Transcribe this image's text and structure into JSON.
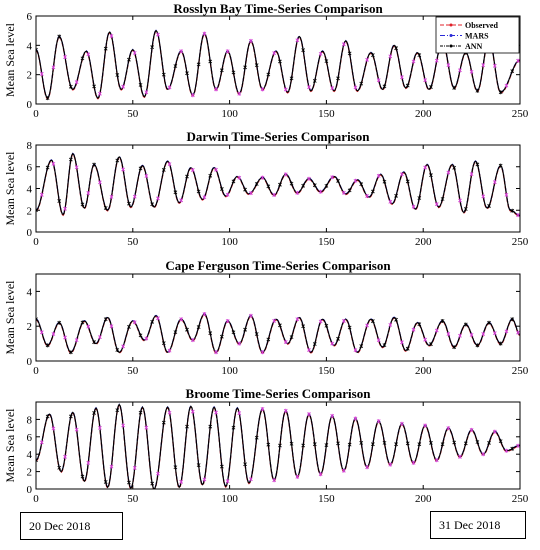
{
  "colors": {
    "observed": "#e0202a",
    "mars": "#2a2ad8",
    "ann": "#000000",
    "marker_mars": "#d33cd3"
  },
  "legend": {
    "entries": [
      "Observed",
      "MARS",
      "ANN"
    ],
    "placement": "top-right"
  },
  "dates": {
    "start": "20 Dec 2018",
    "end": "31 Dec 2018"
  },
  "chart_data": [
    {
      "type": "line",
      "title": "Rosslyn Bay Time-Series Comparison",
      "ylabel": "Mean Sea level",
      "xlim": [
        0,
        250
      ],
      "ylim": [
        0,
        6
      ],
      "xticks": [
        0,
        50,
        100,
        150,
        200,
        250
      ],
      "yticks": [
        0,
        2,
        4,
        6
      ],
      "series_names": [
        "Observed",
        "MARS",
        "ANN"
      ],
      "peaks": [
        [
          0,
          3.7
        ],
        [
          12,
          4.6
        ],
        [
          26,
          3.6
        ],
        [
          38,
          4.9
        ],
        [
          50,
          3.7
        ],
        [
          62,
          5.0
        ],
        [
          75,
          3.6
        ],
        [
          87,
          4.8
        ],
        [
          99,
          3.6
        ],
        [
          111,
          4.3
        ],
        [
          124,
          3.6
        ],
        [
          136,
          4.6
        ],
        [
          148,
          3.6
        ],
        [
          160,
          4.3
        ],
        [
          173,
          3.5
        ],
        [
          185,
          4.0
        ],
        [
          197,
          3.5
        ],
        [
          210,
          4.2
        ],
        [
          222,
          3.5
        ],
        [
          234,
          4.4
        ],
        [
          250,
          3.0
        ]
      ],
      "troughs": [
        [
          6,
          0.4
        ],
        [
          19,
          1.0
        ],
        [
          32,
          0.4
        ],
        [
          44,
          1.0
        ],
        [
          56,
          0.5
        ],
        [
          68,
          1.0
        ],
        [
          81,
          0.6
        ],
        [
          93,
          1.0
        ],
        [
          105,
          0.7
        ],
        [
          117,
          1.0
        ],
        [
          130,
          0.8
        ],
        [
          142,
          0.9
        ],
        [
          154,
          0.9
        ],
        [
          166,
          0.9
        ],
        [
          179,
          1.0
        ],
        [
          191,
          1.1
        ],
        [
          203,
          1.0
        ],
        [
          216,
          1.1
        ],
        [
          228,
          0.9
        ],
        [
          240,
          0.8
        ]
      ]
    },
    {
      "type": "line",
      "title": "Darwin Time-Series Comparison",
      "ylabel": "Mean Sea level",
      "xlim": [
        0,
        250
      ],
      "ylim": [
        0,
        8
      ],
      "xticks": [
        0,
        50,
        100,
        150,
        200,
        250
      ],
      "yticks": [
        0,
        2,
        4,
        6,
        8
      ],
      "series_names": [
        "Observed",
        "MARS",
        "ANN"
      ],
      "peaks": [
        [
          0,
          2.0
        ],
        [
          8,
          6.6
        ],
        [
          19,
          7.2
        ],
        [
          30,
          6.2
        ],
        [
          43,
          6.9
        ],
        [
          55,
          6.1
        ],
        [
          68,
          6.5
        ],
        [
          80,
          5.9
        ],
        [
          92,
          5.9
        ],
        [
          104,
          5.1
        ],
        [
          117,
          5.0
        ],
        [
          129,
          5.3
        ],
        [
          141,
          4.9
        ],
        [
          154,
          5.1
        ],
        [
          166,
          4.8
        ],
        [
          178,
          5.3
        ],
        [
          190,
          5.5
        ],
        [
          202,
          6.2
        ],
        [
          215,
          6.2
        ],
        [
          227,
          6.5
        ],
        [
          240,
          6.1
        ],
        [
          250,
          1.5
        ]
      ],
      "troughs": [
        [
          14,
          1.6
        ],
        [
          25,
          2.2
        ],
        [
          37,
          2.0
        ],
        [
          49,
          2.3
        ],
        [
          61,
          2.3
        ],
        [
          74,
          2.7
        ],
        [
          86,
          3.0
        ],
        [
          98,
          3.3
        ],
        [
          110,
          3.5
        ],
        [
          123,
          3.4
        ],
        [
          135,
          3.6
        ],
        [
          147,
          3.7
        ],
        [
          160,
          3.5
        ],
        [
          172,
          3.2
        ],
        [
          184,
          2.6
        ],
        [
          196,
          2.1
        ],
        [
          208,
          2.3
        ],
        [
          221,
          1.8
        ],
        [
          233,
          2.2
        ],
        [
          245,
          2.0
        ]
      ]
    },
    {
      "type": "line",
      "title": "Cape Ferguson Time-Series Comparison",
      "ylabel": "Mean Sea level",
      "xlim": [
        0,
        250
      ],
      "ylim": [
        0,
        5
      ],
      "xticks": [
        0,
        50,
        100,
        150,
        200,
        250
      ],
      "yticks": [
        0,
        2,
        4
      ],
      "series_names": [
        "Observed",
        "MARS",
        "ANN"
      ],
      "peaks": [
        [
          0,
          2.4
        ],
        [
          12,
          2.2
        ],
        [
          25,
          2.3
        ],
        [
          37,
          2.5
        ],
        [
          50,
          2.3
        ],
        [
          62,
          2.6
        ],
        [
          75,
          2.4
        ],
        [
          87,
          2.7
        ],
        [
          99,
          2.3
        ],
        [
          111,
          2.6
        ],
        [
          124,
          2.4
        ],
        [
          136,
          2.5
        ],
        [
          148,
          2.4
        ],
        [
          160,
          2.4
        ],
        [
          173,
          2.4
        ],
        [
          185,
          2.5
        ],
        [
          197,
          2.2
        ],
        [
          210,
          2.3
        ],
        [
          222,
          2.1
        ],
        [
          234,
          2.2
        ],
        [
          246,
          2.4
        ],
        [
          250,
          1.5
        ]
      ],
      "troughs": [
        [
          6,
          0.9
        ],
        [
          18,
          0.5
        ],
        [
          31,
          1.0
        ],
        [
          43,
          0.5
        ],
        [
          56,
          1.2
        ],
        [
          68,
          0.5
        ],
        [
          81,
          1.2
        ],
        [
          93,
          0.5
        ],
        [
          105,
          1.0
        ],
        [
          117,
          0.5
        ],
        [
          130,
          1.0
        ],
        [
          142,
          0.5
        ],
        [
          154,
          0.9
        ],
        [
          166,
          0.5
        ],
        [
          179,
          0.8
        ],
        [
          191,
          0.6
        ],
        [
          203,
          0.9
        ],
        [
          216,
          0.8
        ],
        [
          228,
          0.9
        ],
        [
          240,
          1.0
        ]
      ]
    },
    {
      "type": "line",
      "title": "Broome Time-Series Comparison",
      "ylabel": "Mean Sea level",
      "xlim": [
        0,
        250
      ],
      "ylim": [
        0,
        10
      ],
      "xticks": [
        0,
        50,
        100,
        150,
        200,
        250
      ],
      "yticks": [
        0,
        2,
        4,
        6,
        8
      ],
      "series_names": [
        "Observed",
        "MARS",
        "ANN"
      ],
      "peaks": [
        [
          0,
          3.3
        ],
        [
          7,
          8.6
        ],
        [
          19,
          8.8
        ],
        [
          31,
          9.3
        ],
        [
          43,
          9.7
        ],
        [
          55,
          9.4
        ],
        [
          68,
          9.4
        ],
        [
          80,
          9.5
        ],
        [
          92,
          9.4
        ],
        [
          104,
          9.3
        ],
        [
          117,
          9.2
        ],
        [
          129,
          9.0
        ],
        [
          141,
          8.6
        ],
        [
          153,
          8.4
        ],
        [
          165,
          8.1
        ],
        [
          177,
          7.8
        ],
        [
          189,
          7.5
        ],
        [
          201,
          7.3
        ],
        [
          213,
          7.0
        ],
        [
          225,
          6.8
        ],
        [
          237,
          6.6
        ],
        [
          250,
          5.0
        ]
      ],
      "troughs": [
        [
          13,
          2.0
        ],
        [
          25,
          0.9
        ],
        [
          37,
          0.2
        ],
        [
          49,
          0.1
        ],
        [
          61,
          0.0
        ],
        [
          74,
          0.2
        ],
        [
          86,
          0.5
        ],
        [
          98,
          0.3
        ],
        [
          110,
          0.7
        ],
        [
          123,
          1.0
        ],
        [
          135,
          1.4
        ],
        [
          147,
          1.7
        ],
        [
          159,
          2.1
        ],
        [
          171,
          2.5
        ],
        [
          183,
          2.8
        ],
        [
          195,
          3.0
        ],
        [
          207,
          3.3
        ],
        [
          219,
          3.7
        ],
        [
          231,
          4.0
        ],
        [
          243,
          4.4
        ]
      ]
    }
  ]
}
